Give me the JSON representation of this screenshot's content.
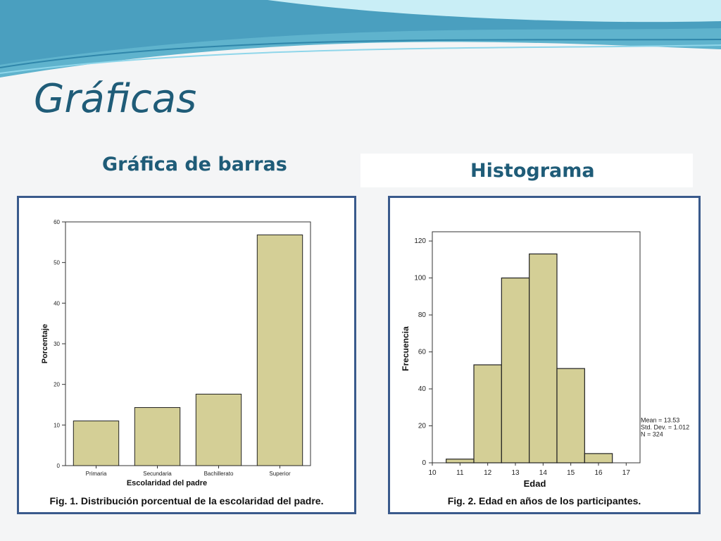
{
  "slide": {
    "title": "Gráficas",
    "colors": {
      "title": "#1f5c78",
      "panel_border": "#3a5a8c",
      "bar_fill": "#d4cf96",
      "bar_stroke": "#222222"
    }
  },
  "bar_section": {
    "heading": "Gráfica de barras",
    "caption": "Fig. 1. Distribución porcentual de la escolaridad del padre."
  },
  "hist_section": {
    "heading": "Histograma",
    "caption": "Fig. 2.  Edad en años de los participantes."
  },
  "chart_data": [
    {
      "type": "bar",
      "categories": [
        "Primaria",
        "Secundaria",
        "Bachillerato",
        "Superior"
      ],
      "values": [
        11,
        14.3,
        17.6,
        56.8
      ],
      "xlabel": "Escolaridad del padre",
      "ylabel": "Porcentaje",
      "ylim": [
        0,
        60
      ],
      "yticks": [
        0,
        10,
        20,
        30,
        40,
        50,
        60
      ],
      "grid": false
    },
    {
      "type": "bar",
      "categories": [
        "11",
        "12",
        "13",
        "14",
        "15",
        "16"
      ],
      "values": [
        2,
        53,
        100,
        113,
        51,
        5
      ],
      "xlabel": "Edad",
      "ylabel": "Frecuencia",
      "xticks": [
        "10",
        "11",
        "12",
        "13",
        "14",
        "15",
        "16",
        "17"
      ],
      "ylim": [
        0,
        125
      ],
      "yticks": [
        0,
        20,
        40,
        60,
        80,
        100,
        120
      ],
      "stats": [
        "Mean = 13.53",
        "Std. Dev. = 1.012",
        "N = 324"
      ],
      "grid": false
    }
  ]
}
